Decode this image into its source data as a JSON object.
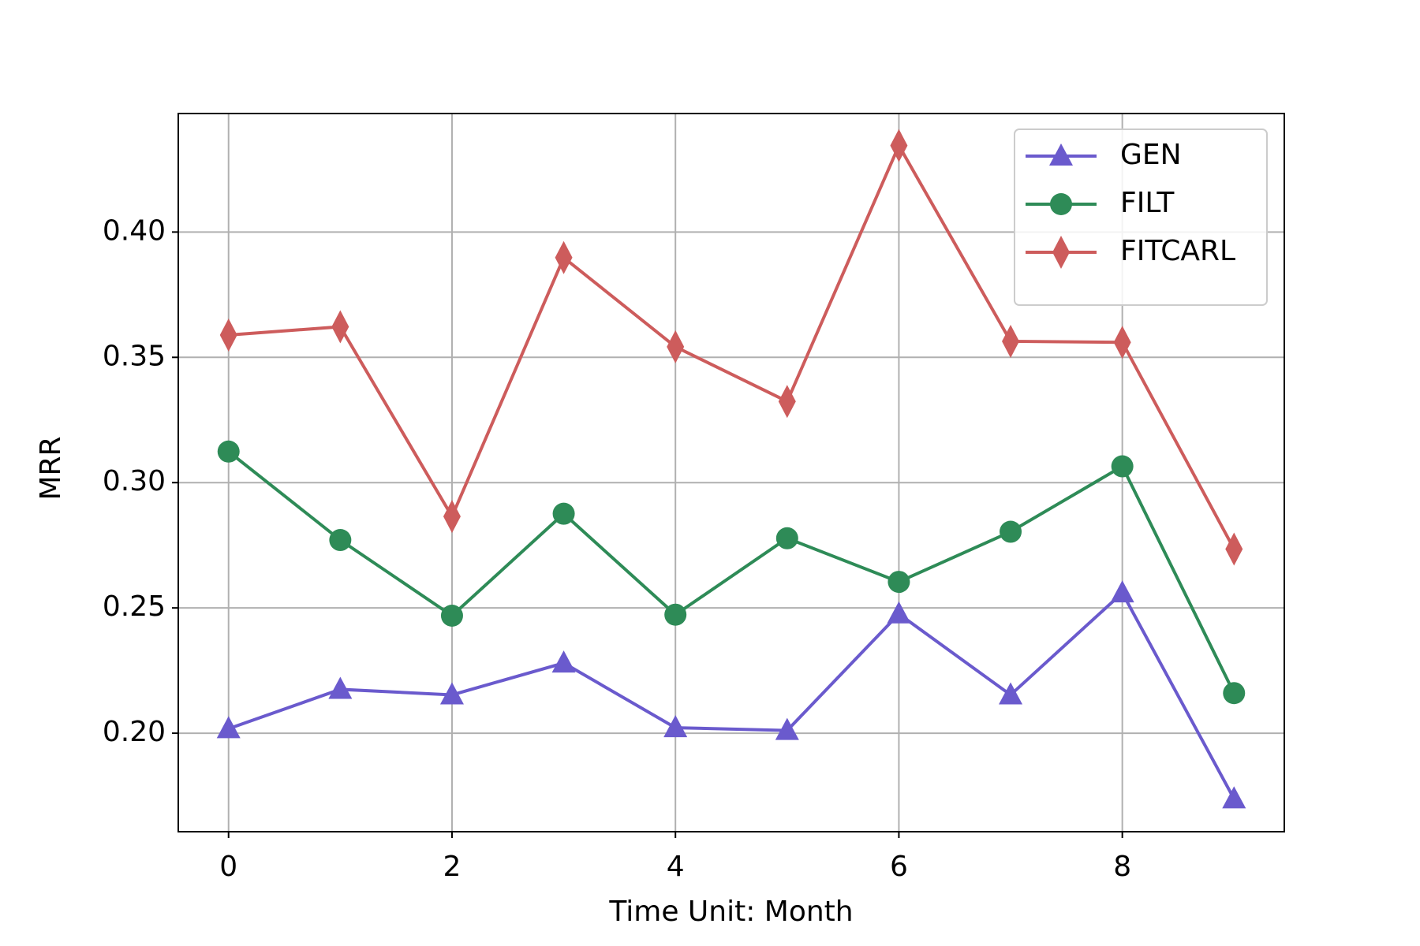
{
  "chart_data": {
    "type": "line",
    "xlabel": "Time Unit: Month",
    "ylabel": "MRR",
    "x": [
      0,
      1,
      2,
      3,
      4,
      5,
      6,
      7,
      8,
      9
    ],
    "series": [
      {
        "name": "GEN",
        "color": "#6a5acd",
        "marker": "triangle",
        "values": [
          0.2018,
          0.2175,
          0.2153,
          0.228,
          0.2022,
          0.2011,
          0.2476,
          0.2153,
          0.256,
          0.1738
        ]
      },
      {
        "name": "FILT",
        "color": "#2e8b57",
        "marker": "circle",
        "values": [
          0.3124,
          0.2771,
          0.2469,
          0.2876,
          0.2473,
          0.2778,
          0.2604,
          0.2804,
          0.3065,
          0.216
        ]
      },
      {
        "name": "FITCARL",
        "color": "#cd5c5c",
        "marker": "diamond",
        "values": [
          0.3589,
          0.3622,
          0.2865,
          0.3898,
          0.3542,
          0.3324,
          0.4345,
          0.3564,
          0.356,
          0.2735
        ]
      }
    ],
    "xlim": [
      -0.45,
      9.45
    ],
    "xticks": [
      0,
      2,
      4,
      6,
      8
    ],
    "ylim": [
      0.1607,
      0.4473
    ],
    "yticks": [
      {
        "value": 0.2,
        "label": "0.20"
      },
      {
        "value": 0.25,
        "label": "0.25"
      },
      {
        "value": 0.3,
        "label": "0.30"
      },
      {
        "value": 0.35,
        "label": "0.35"
      },
      {
        "value": 0.4,
        "label": "0.40"
      }
    ],
    "grid": true,
    "legend": "upper right"
  }
}
